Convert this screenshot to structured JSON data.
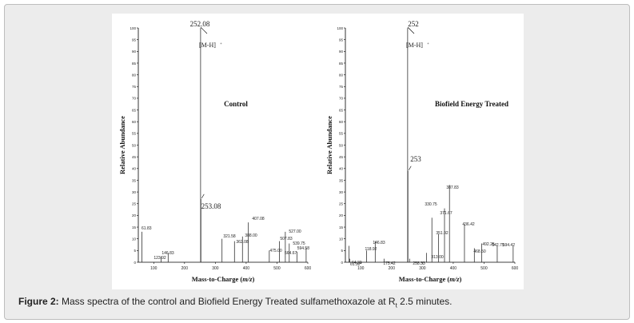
{
  "figure": {
    "caption_label": "Figure 2:",
    "caption_text": "Mass spectra of the control and Biofield Energy Treated sulfamethoxazole at R",
    "caption_sub": "t",
    "caption_end": " 2.5 minutes."
  },
  "chart_data": [
    {
      "type": "bar",
      "title": "Control",
      "xlabel": "Mass-to-Charge (m/z)",
      "xlabel_main": "Mass-to-Charge (",
      "xlabel_italic": "m/z",
      "xlabel_end": ")",
      "ylabel": "Relative Abundance",
      "xlim": [
        50,
        600
      ],
      "ylim": [
        0,
        100
      ],
      "xticks": [
        100,
        200,
        300,
        400,
        500,
        600
      ],
      "yticks": [
        0,
        5,
        10,
        15,
        20,
        25,
        30,
        35,
        40,
        45,
        50,
        55,
        60,
        65,
        70,
        75,
        80,
        85,
        90,
        95,
        100
      ],
      "ion_label": "[M-H]",
      "ion_sup": "+",
      "peaks": [
        {
          "mz": 61.83,
          "value": 13,
          "label": "61.83"
        },
        {
          "mz": 123.92,
          "value": 2.5,
          "label": "123.92"
        },
        {
          "mz": 146.83,
          "value": 4,
          "label": "146.83"
        },
        {
          "mz": 252.08,
          "value": 100,
          "label": "252.08"
        },
        {
          "mz": 253.08,
          "value": 27,
          "label": "253.08"
        },
        {
          "mz": 321.58,
          "value": 10,
          "label": "321.58"
        },
        {
          "mz": 362.08,
          "value": 9,
          "label": "362.08"
        },
        {
          "mz": 388.0,
          "value": 11,
          "label": "388.00"
        },
        {
          "mz": 407.08,
          "value": 17,
          "label": "407.08"
        },
        {
          "mz": 475.0,
          "value": 5,
          "label": "475.00"
        },
        {
          "mz": 507.83,
          "value": 9,
          "label": "507.83"
        },
        {
          "mz": 527.0,
          "value": 13,
          "label": "527.00"
        },
        {
          "mz": 539.75,
          "value": 8,
          "label": "539.75"
        },
        {
          "mz": 564.67,
          "value": 4.5,
          "label": "564.67"
        },
        {
          "mz": 594.58,
          "value": 6,
          "label": "594.58"
        }
      ]
    },
    {
      "type": "bar",
      "title": "Biofield Energy Treated",
      "xlabel": "Mass-to-Charge (m/z)",
      "xlabel_main": "Mass-to-Charge (",
      "xlabel_italic": "m/z",
      "xlabel_end": ")",
      "ylabel": "Relative Abundance",
      "xlim": [
        50,
        600
      ],
      "ylim": [
        0,
        100
      ],
      "xticks": [
        100,
        200,
        300,
        400,
        500,
        600
      ],
      "yticks": [
        0,
        5,
        10,
        15,
        20,
        25,
        30,
        35,
        40,
        45,
        50,
        55,
        60,
        65,
        70,
        75,
        80,
        85,
        90,
        95,
        100
      ],
      "ion_label": "[M-H]",
      "ion_sup": "+",
      "peaks": [
        {
          "mz": 61.92,
          "value": 7,
          "label": "61.92"
        },
        {
          "mz": 64.33,
          "value": 1.5,
          "label": "64.33"
        },
        {
          "mz": 118.92,
          "value": 5,
          "label": "118.92"
        },
        {
          "mz": 146.83,
          "value": 9,
          "label": "146.83"
        },
        {
          "mz": 175.42,
          "value": 1.5,
          "label": "175.42"
        },
        {
          "mz": 252,
          "value": 100,
          "label": "252"
        },
        {
          "mz": 253,
          "value": 39,
          "label": "253"
        },
        {
          "mz": 258.33,
          "value": 1.5,
          "label": "258.33"
        },
        {
          "mz": 313.0,
          "value": 4,
          "label": "313.00"
        },
        {
          "mz": 330.75,
          "value": 19,
          "label": "330.75"
        },
        {
          "mz": 351.92,
          "value": 12,
          "label": "351.92"
        },
        {
          "mz": 371.67,
          "value": 23,
          "label": "371.67"
        },
        {
          "mz": 387.83,
          "value": 33,
          "label": "387.83"
        },
        {
          "mz": 436.42,
          "value": 16,
          "label": "436.42"
        },
        {
          "mz": 468.5,
          "value": 6,
          "label": "468.50"
        },
        {
          "mz": 492.25,
          "value": 8,
          "label": "492.25"
        },
        {
          "mz": 542.75,
          "value": 7,
          "label": "542.75"
        },
        {
          "mz": 594.42,
          "value": 7,
          "label": "594.42"
        }
      ]
    }
  ]
}
